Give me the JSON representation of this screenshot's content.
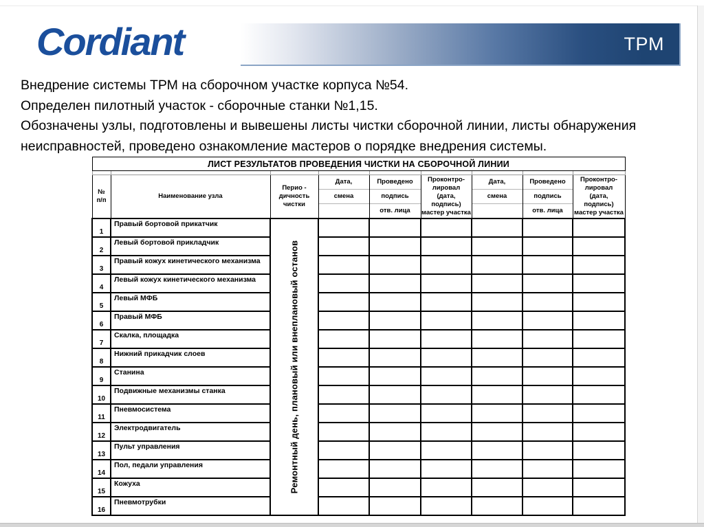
{
  "header": {
    "logo_text": "Cordiant",
    "badge_label": "TPM",
    "colors": {
      "logo_blue": "#1b4f9c",
      "bar_navy": "#1e4472",
      "bar_edge_light_blue": "#8aa4c5",
      "badge_text": "#ffffff"
    }
  },
  "intro": {
    "line1": "Внедрение системы ТРМ на сборочном участке корпуса №54.",
    "line2": "Определен пилотный участок - сборочные станки №1,15.",
    "line3": "Обозначены узлы, подготовлены и вывешены листы чистки сборочной линии, листы обнаружения неисправностей, проведено ознакомление мастеров о порядке внедрения системы."
  },
  "table": {
    "title": "ЛИСТ РЕЗУЛЬТАТОВ ПРОВЕДЕНИЯ ЧИСТКИ НА СБОРОЧНОЙ ЛИНИИ",
    "headers": {
      "num": "№\nп/п",
      "name": "Наименование узла",
      "period": "Перио -\nдичность\nчистки",
      "date_top": "Дата,",
      "date_mid": "смена",
      "date_bottom": "",
      "done_top": "Проведено",
      "done_mid": "подпись",
      "done_bottom": "отв. лица",
      "control": "Проконтро-\nлировал\n(дата,\nподпись)\nмастер участка"
    },
    "period_note": "Ремонтный день, плановый или внеплановый останов",
    "rows": [
      {
        "num": "1",
        "label": "Правый бортовой прикатчик"
      },
      {
        "num": "2",
        "label": "Левый бортовой прикладчик"
      },
      {
        "num": "3",
        "label": "Правый кожух кинетического механизма"
      },
      {
        "num": "4",
        "label": "Левый кожух кинетического механизма"
      },
      {
        "num": "5",
        "label": "Левый МФБ"
      },
      {
        "num": "6",
        "label": "Правый МФБ"
      },
      {
        "num": "7",
        "label": "Скалка, площадка"
      },
      {
        "num": "8",
        "label": "Нижний прикадчик слоев"
      },
      {
        "num": "9",
        "label": "Станина"
      },
      {
        "num": "10",
        "label": "Подвижные механизмы станка"
      },
      {
        "num": "11",
        "label": "Пневмосистема"
      },
      {
        "num": "12",
        "label": "Электродвигатель"
      },
      {
        "num": "13",
        "label": "Пульт управления"
      },
      {
        "num": "14",
        "label": "Пол, педали управления"
      },
      {
        "num": "15",
        "label": "Кожуха"
      },
      {
        "num": "16",
        "label": "Пневмотрубки"
      }
    ]
  }
}
